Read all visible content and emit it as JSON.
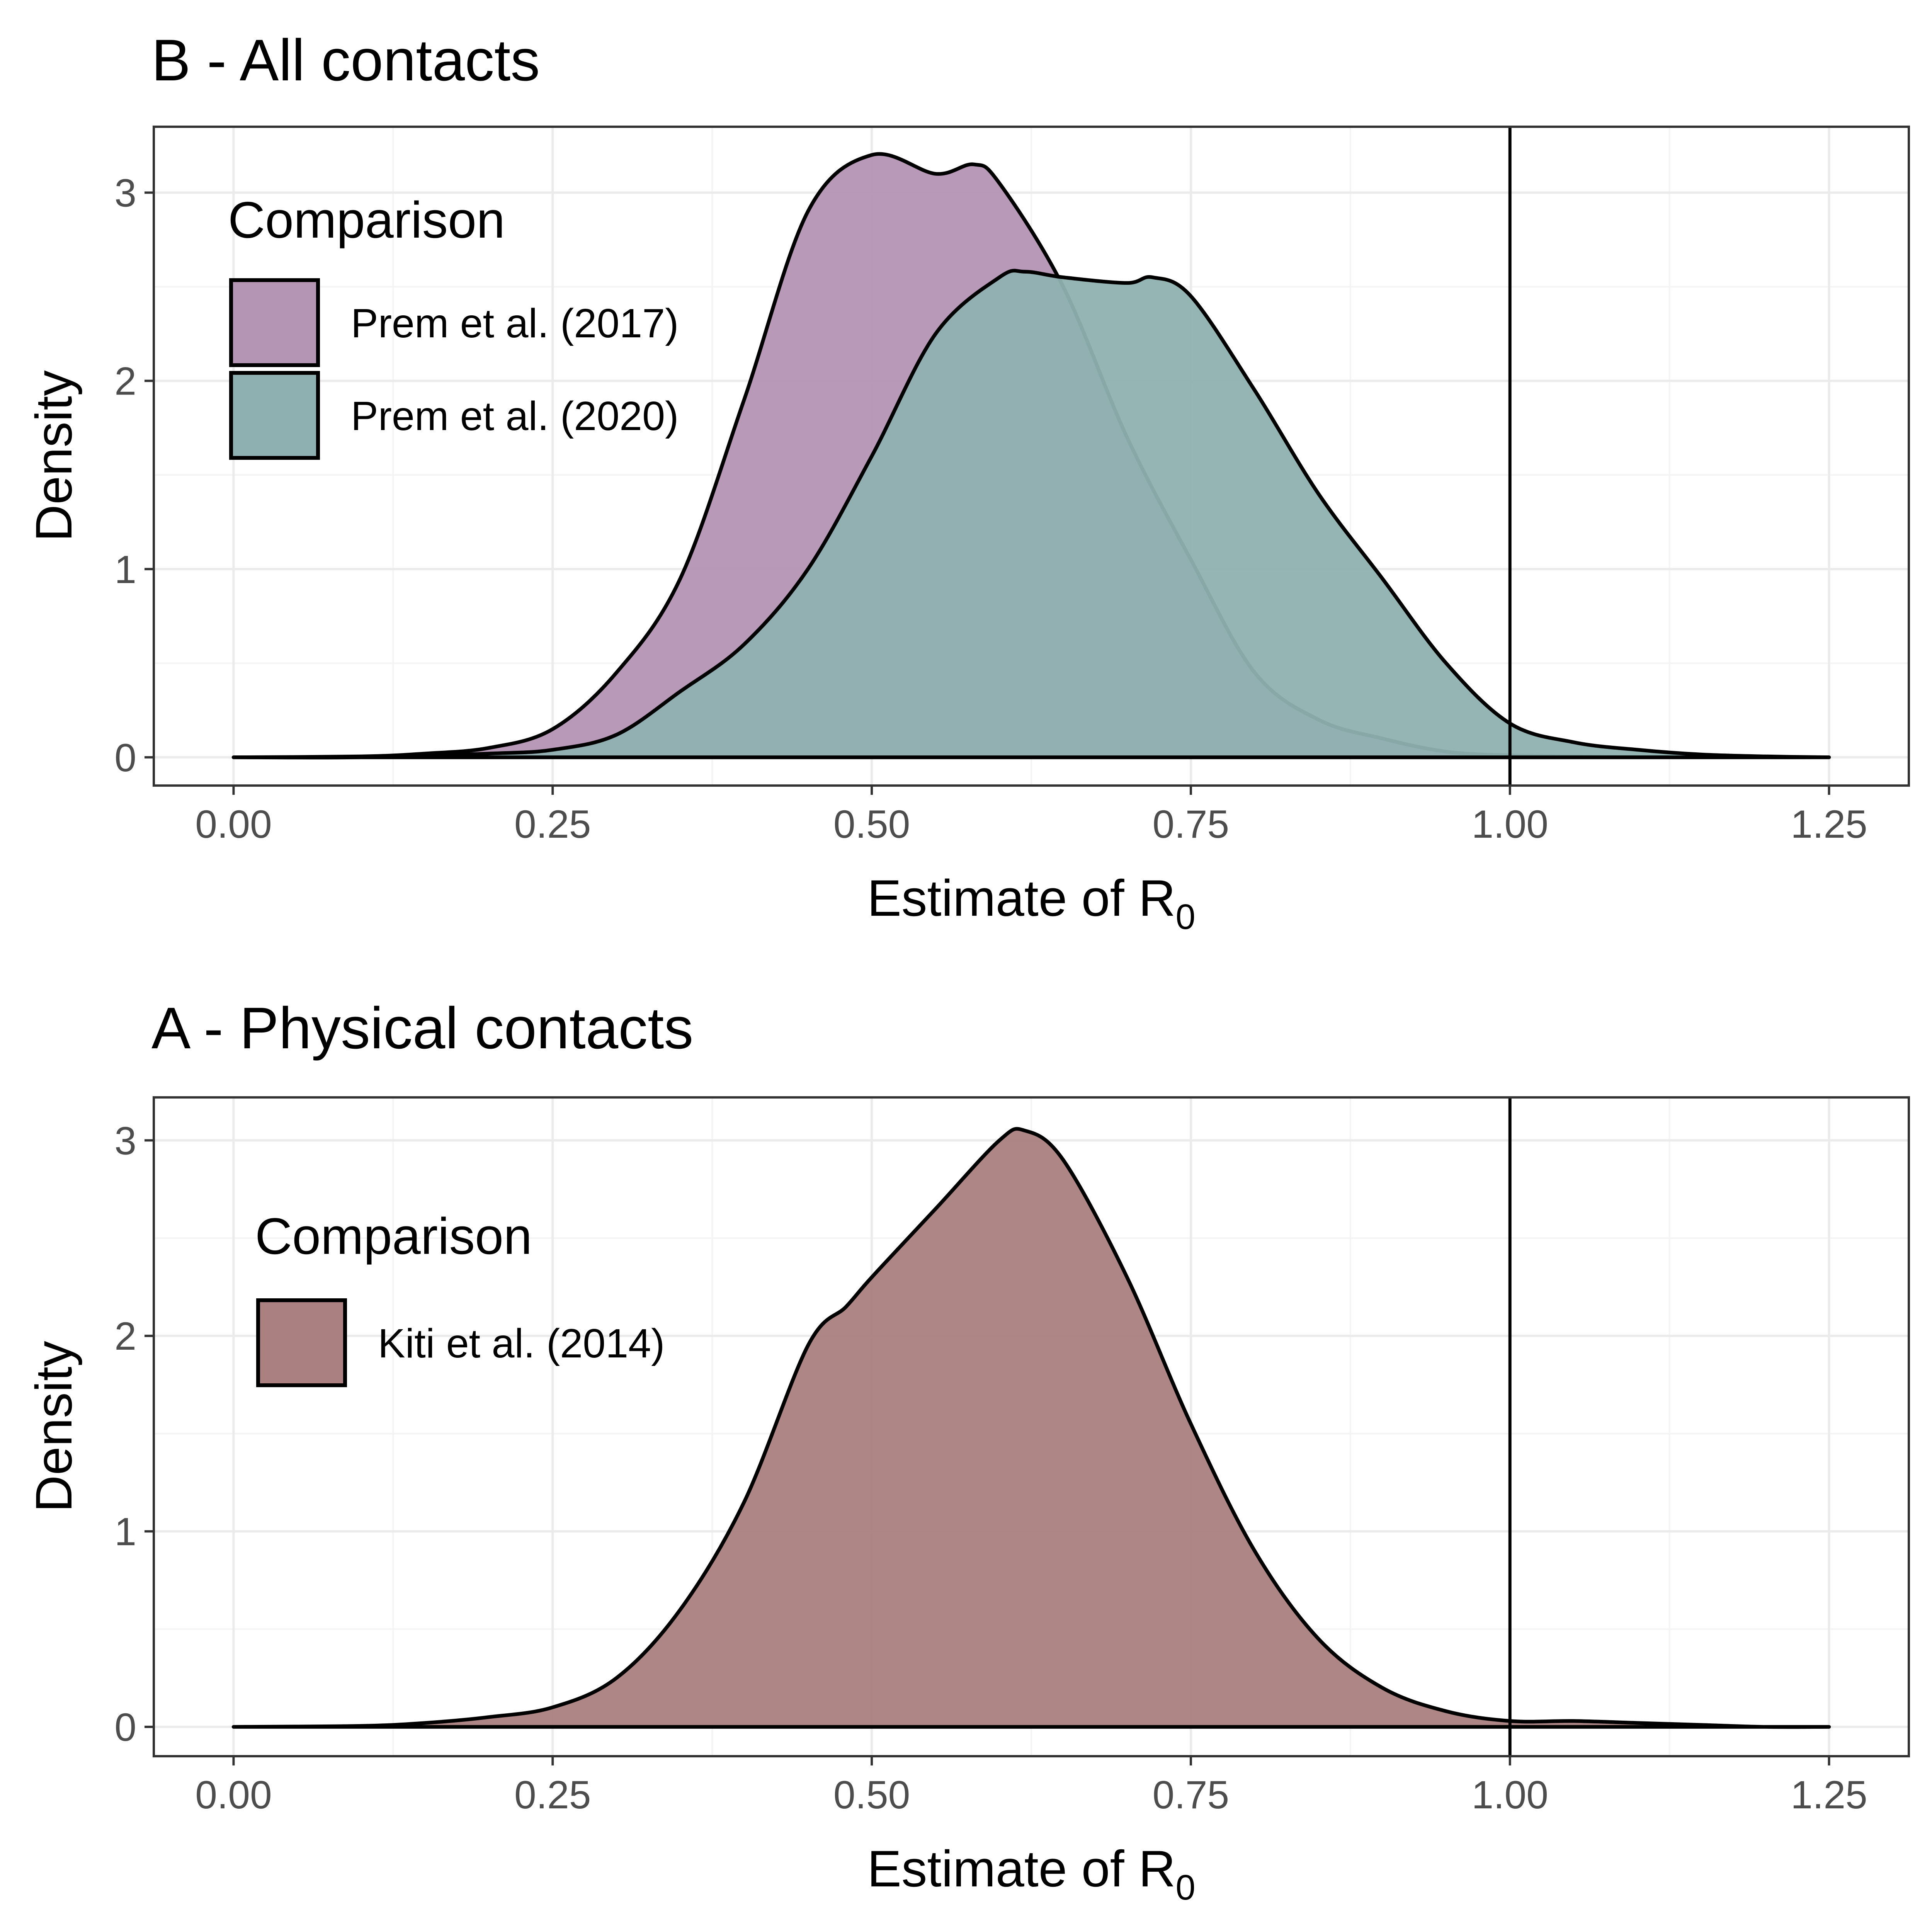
{
  "chart_data": [
    {
      "type": "area",
      "title": "B - All contacts",
      "xlabel": "Estimate of R",
      "xlabel_sub": "0",
      "ylabel": "Density",
      "xlim": [
        -0.0625,
        1.3125
      ],
      "ylim": [
        -0.15,
        3.35
      ],
      "x_ticks": [
        0,
        0.25,
        0.5,
        0.75,
        1,
        1.25
      ],
      "x_tick_labels": [
        "0.00",
        "0.25",
        "0.50",
        "0.75",
        "1.00",
        "1.25"
      ],
      "y_ticks": [
        0,
        1,
        2,
        3
      ],
      "y_tick_labels": [
        "0",
        "1",
        "2",
        "3"
      ],
      "grid": true,
      "vline": 1.0,
      "legend": {
        "title": "Comparison",
        "position": "top-left"
      },
      "series": [
        {
          "name": "Prem et al. (2017)",
          "color": "#b495b4",
          "x": [
            0,
            0.1,
            0.15,
            0.2,
            0.25,
            0.3,
            0.35,
            0.4,
            0.45,
            0.5,
            0.55,
            0.58,
            0.6,
            0.65,
            0.7,
            0.75,
            0.8,
            0.85,
            0.9,
            0.95,
            1.0,
            1.05,
            1.1,
            1.15,
            1.2,
            1.25
          ],
          "y": [
            0,
            0.005,
            0.02,
            0.05,
            0.15,
            0.45,
            0.95,
            1.9,
            2.9,
            3.2,
            3.1,
            3.15,
            3.05,
            2.5,
            1.7,
            1.05,
            0.45,
            0.2,
            0.1,
            0.03,
            0.01,
            0.005,
            0.002,
            0.001,
            0,
            0
          ]
        },
        {
          "name": "Prem et al. (2020)",
          "color": "#8fb0b0",
          "x": [
            0,
            0.1,
            0.2,
            0.25,
            0.3,
            0.35,
            0.4,
            0.45,
            0.5,
            0.55,
            0.6,
            0.62,
            0.65,
            0.7,
            0.72,
            0.75,
            0.8,
            0.85,
            0.9,
            0.95,
            1.0,
            1.05,
            1.1,
            1.15,
            1.2,
            1.25
          ],
          "y": [
            0,
            0,
            0.02,
            0.04,
            0.12,
            0.35,
            0.6,
            1.0,
            1.6,
            2.25,
            2.55,
            2.58,
            2.55,
            2.52,
            2.55,
            2.45,
            1.95,
            1.4,
            0.95,
            0.5,
            0.18,
            0.08,
            0.04,
            0.015,
            0.005,
            0
          ]
        }
      ]
    },
    {
      "type": "area",
      "title": "A - Physical contacts",
      "xlabel": "Estimate of R",
      "xlabel_sub": "0",
      "ylabel": "Density",
      "xlim": [
        -0.0625,
        1.3125
      ],
      "ylim": [
        -0.15,
        3.22
      ],
      "x_ticks": [
        0,
        0.25,
        0.5,
        0.75,
        1,
        1.25
      ],
      "x_tick_labels": [
        "0.00",
        "0.25",
        "0.50",
        "0.75",
        "1.00",
        "1.25"
      ],
      "y_ticks": [
        0,
        1,
        2,
        3
      ],
      "y_tick_labels": [
        "0",
        "1",
        "2",
        "3"
      ],
      "grid": true,
      "vline": 1.0,
      "legend": {
        "title": "Comparison",
        "position": "top-left"
      },
      "series": [
        {
          "name": "Kiti et al. (2014)",
          "color": "#aa8080",
          "x": [
            0,
            0.1,
            0.15,
            0.2,
            0.25,
            0.3,
            0.35,
            0.4,
            0.45,
            0.48,
            0.5,
            0.55,
            0.6,
            0.62,
            0.65,
            0.7,
            0.75,
            0.8,
            0.85,
            0.9,
            0.95,
            1.0,
            1.05,
            1.1,
            1.15,
            1.2,
            1.25
          ],
          "y": [
            0,
            0.005,
            0.02,
            0.05,
            0.1,
            0.25,
            0.6,
            1.15,
            1.95,
            2.15,
            2.3,
            2.65,
            3.0,
            3.05,
            2.9,
            2.3,
            1.55,
            0.9,
            0.45,
            0.2,
            0.08,
            0.03,
            0.03,
            0.02,
            0.01,
            0,
            0
          ]
        }
      ]
    }
  ]
}
